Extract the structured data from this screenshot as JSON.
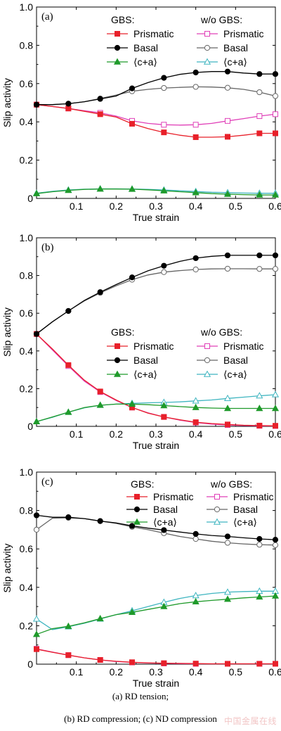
{
  "figure": {
    "captions": [
      "(a) RD tension;",
      "(b) RD compression; (c) ND compression"
    ],
    "watermark": "中国金属在线"
  },
  "legend": {
    "header_gbs": "GBS:",
    "header_wo": "w/o GBS:",
    "entries": [
      "Prismatic",
      "Basal",
      "⟨c+a⟩"
    ]
  },
  "colors": {
    "prismatic_gbs": "#e8202a",
    "basal_gbs": "#000000",
    "ca_gbs": "#1f9a2a",
    "prismatic_wo": "#e040b8",
    "basal_wo": "#666666",
    "ca_wo": "#3fb5c0"
  },
  "chart_data": [
    {
      "type": "line",
      "panel_label": "(a)",
      "xlabel": "True strain",
      "ylabel": "Slip activity",
      "xlim": [
        0,
        0.6
      ],
      "ylim": [
        0,
        1.0
      ],
      "xticks": [
        "0.1",
        "0.2",
        "0.3",
        "0.4",
        "0.5",
        "0.6"
      ],
      "yticks": [
        "0",
        "0.2",
        "0.4",
        "0.6",
        "0.8",
        "1.0"
      ],
      "grid": false,
      "legend_placement": "top-right",
      "x": [
        0,
        0.04,
        0.08,
        0.12,
        0.16,
        0.2,
        0.24,
        0.28,
        0.32,
        0.36,
        0.4,
        0.44,
        0.48,
        0.52,
        0.56,
        0.6
      ],
      "series": [
        {
          "name": "Prismatic",
          "group": "GBS",
          "values": [
            0.49,
            0.48,
            0.47,
            0.455,
            0.44,
            0.425,
            0.39,
            0.365,
            0.345,
            0.33,
            0.32,
            0.32,
            0.322,
            0.33,
            0.34,
            0.34
          ]
        },
        {
          "name": "Basal",
          "group": "GBS",
          "values": [
            0.49,
            0.49,
            0.495,
            0.505,
            0.52,
            0.535,
            0.575,
            0.605,
            0.63,
            0.648,
            0.658,
            0.663,
            0.663,
            0.655,
            0.65,
            0.65
          ]
        },
        {
          "name": "⟨c+a⟩",
          "group": "GBS",
          "values": [
            0.025,
            0.035,
            0.042,
            0.047,
            0.049,
            0.049,
            0.048,
            0.045,
            0.04,
            0.035,
            0.03,
            0.025,
            0.022,
            0.02,
            0.018,
            0.018
          ]
        },
        {
          "name": "Prismatic",
          "group": "w/o GBS",
          "values": [
            0.49,
            0.48,
            0.47,
            0.458,
            0.447,
            0.43,
            0.405,
            0.392,
            0.385,
            0.383,
            0.385,
            0.392,
            0.405,
            0.417,
            0.43,
            0.44
          ]
        },
        {
          "name": "Basal",
          "group": "w/o GBS",
          "values": [
            0.49,
            0.49,
            0.495,
            0.505,
            0.522,
            0.54,
            0.56,
            0.57,
            0.577,
            0.58,
            0.583,
            0.582,
            0.578,
            0.57,
            0.555,
            0.535
          ]
        },
        {
          "name": "⟨c+a⟩",
          "group": "w/o GBS",
          "values": [
            0.027,
            0.037,
            0.044,
            0.048,
            0.05,
            0.05,
            0.049,
            0.047,
            0.044,
            0.04,
            0.036,
            0.032,
            0.03,
            0.028,
            0.027,
            0.027
          ]
        }
      ]
    },
    {
      "type": "line",
      "panel_label": "(b)",
      "xlabel": "True strain",
      "ylabel": "Slip activity",
      "xlim": [
        0,
        0.6
      ],
      "ylim": [
        0,
        1.0
      ],
      "xticks": [
        "0.1",
        "0.2",
        "0.3",
        "0.4",
        "0.5",
        "0.6"
      ],
      "yticks": [
        "0",
        "0.2",
        "0.4",
        "0.6",
        "0.8",
        "1.0"
      ],
      "grid": false,
      "legend_placement": "center-right",
      "x": [
        0,
        0.04,
        0.08,
        0.12,
        0.16,
        0.2,
        0.24,
        0.28,
        0.32,
        0.36,
        0.4,
        0.44,
        0.48,
        0.52,
        0.56,
        0.6
      ],
      "series": [
        {
          "name": "Prismatic",
          "group": "GBS",
          "values": [
            0.49,
            0.41,
            0.325,
            0.245,
            0.185,
            0.14,
            0.1,
            0.07,
            0.05,
            0.035,
            0.022,
            0.015,
            0.01,
            0.006,
            0.004,
            0.003
          ]
        },
        {
          "name": "Basal",
          "group": "GBS",
          "values": [
            0.49,
            0.555,
            0.612,
            0.668,
            0.712,
            0.752,
            0.79,
            0.825,
            0.852,
            0.875,
            0.892,
            0.902,
            0.907,
            0.907,
            0.907,
            0.907
          ]
        },
        {
          "name": "⟨c+a⟩",
          "group": "GBS",
          "values": [
            0.025,
            0.05,
            0.075,
            0.1,
            0.112,
            0.118,
            0.118,
            0.115,
            0.11,
            0.105,
            0.1,
            0.097,
            0.095,
            0.095,
            0.095,
            0.095
          ]
        },
        {
          "name": "Prismatic",
          "group": "w/o GBS",
          "values": [
            0.49,
            0.405,
            0.32,
            0.24,
            0.182,
            0.137,
            0.1,
            0.072,
            0.05,
            0.033,
            0.02,
            0.012,
            0.007,
            0.004,
            0.003,
            0.002
          ]
        },
        {
          "name": "Basal",
          "group": "w/o GBS",
          "values": [
            0.49,
            0.555,
            0.612,
            0.665,
            0.708,
            0.745,
            0.778,
            0.803,
            0.818,
            0.826,
            0.832,
            0.835,
            0.836,
            0.836,
            0.835,
            0.835
          ]
        },
        {
          "name": "⟨c+a⟩",
          "group": "w/o GBS",
          "values": [
            0.025,
            0.048,
            0.075,
            0.098,
            0.112,
            0.118,
            0.122,
            0.125,
            0.127,
            0.13,
            0.135,
            0.14,
            0.148,
            0.155,
            0.162,
            0.168
          ]
        }
      ]
    },
    {
      "type": "line",
      "panel_label": "(c)",
      "xlabel": "True strain",
      "ylabel": "Slip activity",
      "xlim": [
        0,
        0.6
      ],
      "ylim": [
        0,
        1.0
      ],
      "xticks": [
        "0.1",
        "0.2",
        "0.3",
        "0.4",
        "0.5",
        "0.6"
      ],
      "yticks": [
        "0",
        "0.2",
        "0.4",
        "0.6",
        "0.8",
        "1.0"
      ],
      "grid": false,
      "legend_placement": "top-right",
      "x": [
        0,
        0.04,
        0.08,
        0.12,
        0.16,
        0.2,
        0.24,
        0.28,
        0.32,
        0.36,
        0.4,
        0.44,
        0.48,
        0.52,
        0.56,
        0.6
      ],
      "series": [
        {
          "name": "Prismatic",
          "group": "GBS",
          "values": [
            0.078,
            0.062,
            0.047,
            0.033,
            0.022,
            0.015,
            0.01,
            0.007,
            0.005,
            0.004,
            0.003,
            0.002,
            0.002,
            0.002,
            0.002,
            0.002
          ]
        },
        {
          "name": "Basal",
          "group": "GBS",
          "values": [
            0.775,
            0.765,
            0.765,
            0.758,
            0.745,
            0.735,
            0.72,
            0.708,
            0.698,
            0.688,
            0.678,
            0.67,
            0.665,
            0.658,
            0.652,
            0.648
          ]
        },
        {
          "name": "⟨c+a⟩",
          "group": "GBS",
          "values": [
            0.155,
            0.185,
            0.197,
            0.215,
            0.237,
            0.258,
            0.27,
            0.285,
            0.3,
            0.315,
            0.325,
            0.332,
            0.338,
            0.345,
            0.35,
            0.355
          ]
        },
        {
          "name": "Prismatic",
          "group": "w/o GBS",
          "values": [
            0.08,
            0.063,
            0.047,
            0.033,
            0.022,
            0.014,
            0.009,
            0.006,
            0.004,
            0.003,
            0.002,
            0.002,
            0.002,
            0.002,
            0.002,
            0.002
          ]
        },
        {
          "name": "Basal",
          "group": "w/o GBS",
          "values": [
            0.7,
            0.76,
            0.762,
            0.758,
            0.745,
            0.733,
            0.715,
            0.7,
            0.682,
            0.665,
            0.652,
            0.64,
            0.632,
            0.626,
            0.622,
            0.62
          ]
        },
        {
          "name": "⟨c+a⟩",
          "group": "w/o GBS",
          "values": [
            0.235,
            0.18,
            0.195,
            0.213,
            0.235,
            0.258,
            0.278,
            0.3,
            0.322,
            0.342,
            0.357,
            0.368,
            0.375,
            0.378,
            0.38,
            0.38
          ]
        }
      ]
    }
  ]
}
